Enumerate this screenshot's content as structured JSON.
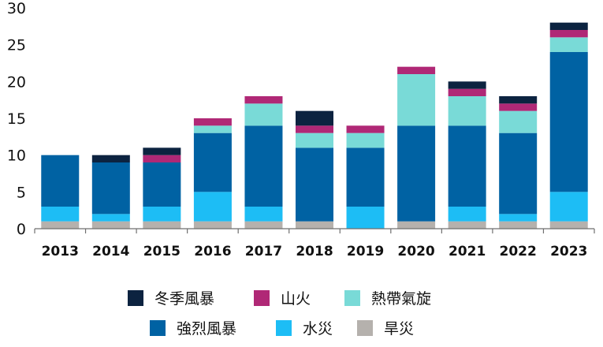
{
  "chart_data": {
    "type": "bar",
    "stacked": true,
    "title": "",
    "xlabel": "",
    "ylabel": "",
    "ylim": [
      0,
      30
    ],
    "yticks": [
      0,
      5,
      10,
      15,
      20,
      25,
      30
    ],
    "grid": false,
    "legend_position": "bottom",
    "categories": [
      "2013",
      "2014",
      "2015",
      "2016",
      "2017",
      "2018",
      "2019",
      "2020",
      "2021",
      "2022",
      "2023"
    ],
    "series": [
      {
        "name": "旱災",
        "color": "#b5b1ad",
        "values": [
          1,
          1,
          1,
          1,
          1,
          1,
          0,
          1,
          1,
          1,
          1
        ]
      },
      {
        "name": "水災",
        "color": "#1dbdf5",
        "values": [
          2,
          1,
          2,
          4,
          2,
          0,
          3,
          0,
          2,
          1,
          4
        ]
      },
      {
        "name": "強烈風暴",
        "color": "#0062a3",
        "values": [
          7,
          7,
          6,
          8,
          11,
          10,
          8,
          13,
          11,
          11,
          19
        ]
      },
      {
        "name": "熱帶氣旋",
        "color": "#79dad7",
        "values": [
          0,
          0,
          0,
          1,
          3,
          2,
          2,
          7,
          4,
          3,
          2
        ]
      },
      {
        "name": "山火",
        "color": "#b02876",
        "values": [
          0,
          0,
          1,
          1,
          1,
          1,
          1,
          1,
          1,
          1,
          1
        ]
      },
      {
        "name": "冬季風暴",
        "color": "#0c2340",
        "values": [
          0,
          1,
          1,
          0,
          0,
          2,
          0,
          0,
          1,
          1,
          1
        ]
      }
    ],
    "legend_order": [
      "冬季風暴",
      "山火",
      "熱帶氣旋",
      "強烈風暴",
      "水災",
      "旱災"
    ]
  }
}
